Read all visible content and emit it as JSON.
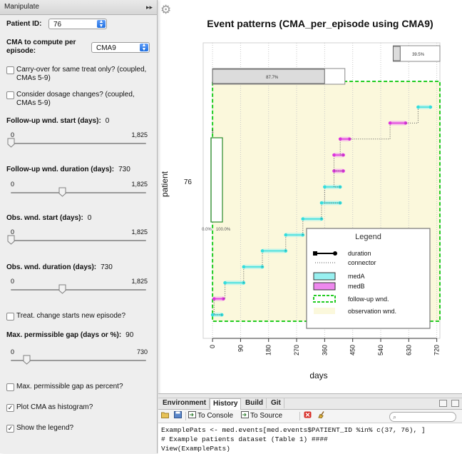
{
  "manipulate": {
    "title": "Manipulate",
    "collapse_icon": "▸▸",
    "patient_id": {
      "label": "Patient ID:",
      "value": "76"
    },
    "cma": {
      "label": "CMA to compute per episode:",
      "value": "CMA9"
    },
    "carry_over": {
      "label": "Carry-over for same treat only? (coupled, CMAs 5-9)",
      "checked": false
    },
    "dosage": {
      "label": "Consider dosage changes? (coupled, CMAs 5-9)",
      "checked": false
    },
    "fu_start": {
      "label": "Follow-up wnd. start (days):",
      "value": "0",
      "min": "0",
      "max": "1,825",
      "position": 0.0
    },
    "fu_duration": {
      "label": "Follow-up wnd. duration (days):",
      "value": "730",
      "min": "0",
      "max": "1,825",
      "position": 0.4
    },
    "obs_start": {
      "label": "Obs. wnd. start (days):",
      "value": "0",
      "min": "0",
      "max": "1,825",
      "position": 0.0
    },
    "obs_duration": {
      "label": "Obs. wnd. duration (days):",
      "value": "730",
      "min": "0",
      "max": "1,825",
      "position": 0.4
    },
    "treat_change": {
      "label": "Treat. change starts new episode?",
      "checked": false
    },
    "max_gap": {
      "label": "Max. permissible gap (days or %):",
      "value": "90",
      "min": "0",
      "max": "730",
      "position": 0.1233
    },
    "gap_percent": {
      "label": "Max. permissible gap as percent?",
      "checked": false
    },
    "plot_hist": {
      "label": "Plot CMA as histogram?",
      "checked": true
    },
    "show_legend": {
      "label": "Show the legend?",
      "checked": true
    },
    "check_mark": "✓"
  },
  "gear_icon": "⚙",
  "chart_data": {
    "type": "event-timeline",
    "title": "Event patterns (CMA_per_episode using CMA9)",
    "xlabel": "days",
    "ylabel": "patient",
    "patient_label": "76",
    "xlim": [
      -30,
      730
    ],
    "xticks": [
      0,
      90,
      180,
      270,
      360,
      450,
      540,
      630,
      720
    ],
    "followup_window": [
      0,
      730
    ],
    "observation_window": [
      0,
      730
    ],
    "episode_cma": [
      {
        "label": "87.7%",
        "start": 0,
        "end": 425,
        "fraction": 0.877
      },
      {
        "label": "39.5%",
        "start": 580,
        "end": 730,
        "fraction": 0.395
      }
    ],
    "histogram": {
      "top_label": "1",
      "left_label": "0.0%",
      "right_label": "100.0%"
    },
    "events": [
      {
        "med": "medA",
        "start": 0,
        "end": 30,
        "connector_to": 5
      },
      {
        "med": "medB",
        "start": 5,
        "end": 35,
        "connector_to": 40
      },
      {
        "med": "medA",
        "start": 40,
        "end": 100,
        "connector_to": 100
      },
      {
        "med": "medA",
        "start": 100,
        "end": 160,
        "connector_to": 160
      },
      {
        "med": "medA",
        "start": 160,
        "end": 235,
        "connector_to": 235
      },
      {
        "med": "medA",
        "start": 235,
        "end": 290,
        "connector_to": 290
      },
      {
        "med": "medA",
        "start": 290,
        "end": 350,
        "connector_to": 350
      },
      {
        "med": "medA",
        "start": 350,
        "end": 410,
        "connector_to": 360
      },
      {
        "med": "medA",
        "start": 360,
        "end": 410,
        "connector_to": 390
      },
      {
        "med": "medB",
        "start": 390,
        "end": 420,
        "connector_to": 390
      },
      {
        "med": "medB",
        "start": 390,
        "end": 420,
        "connector_to": 410
      },
      {
        "med": "medB",
        "start": 410,
        "end": 440,
        "connector_to": 570
      },
      {
        "med": "medB",
        "start": 570,
        "end": 620,
        "connector_to": 660
      },
      {
        "med": "medA",
        "start": 660,
        "end": 700,
        "connector_to": null
      }
    ],
    "legend": {
      "title": "Legend",
      "items": [
        "duration",
        "connector",
        "medA",
        "medB",
        "follow-up wnd.",
        "observation wnd."
      ]
    },
    "colors": {
      "medA": "#98f0f0",
      "medB": "#ee88ee",
      "lineA": "#33dddd",
      "lineB": "#dd33dd",
      "followup": "#22cc22",
      "observation": "#fbf8dc"
    }
  },
  "console": {
    "tabs": [
      "Environment",
      "History",
      "Build",
      "Git"
    ],
    "active_tab": "History",
    "toolbar": {
      "to_console": "To Console",
      "to_source": "To Source"
    },
    "lines": [
      "ExamplePats <- med.events[med.events$PATIENT_ID %in% c(37, 76), ]",
      "# Example patients dataset (Table 1) ####",
      "View(ExamplePats)"
    ]
  }
}
